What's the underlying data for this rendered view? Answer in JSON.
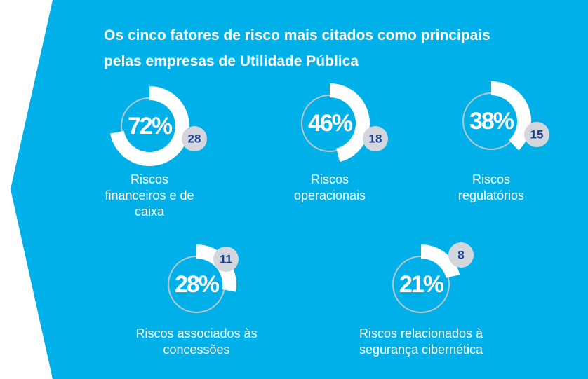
{
  "chart_data": {
    "type": "donut",
    "title": "Os cinco fatores de risco mais citados como principais pelas empresas de Utilidade Pública",
    "categories": [
      "Riscos financeiros e de caixa",
      "Riscos operacionais",
      "Riscos regulatórios",
      "Riscos associados às concessões",
      "Riscos relacionados à segurança cibernética"
    ],
    "values": [
      72,
      46,
      38,
      28,
      21
    ],
    "value_labels": [
      "72%",
      "46%",
      "38%",
      "28%",
      "21%"
    ],
    "counts": [
      28,
      18,
      15,
      11,
      8
    ],
    "color": "#ffffff",
    "background": "#00b0e8"
  }
}
